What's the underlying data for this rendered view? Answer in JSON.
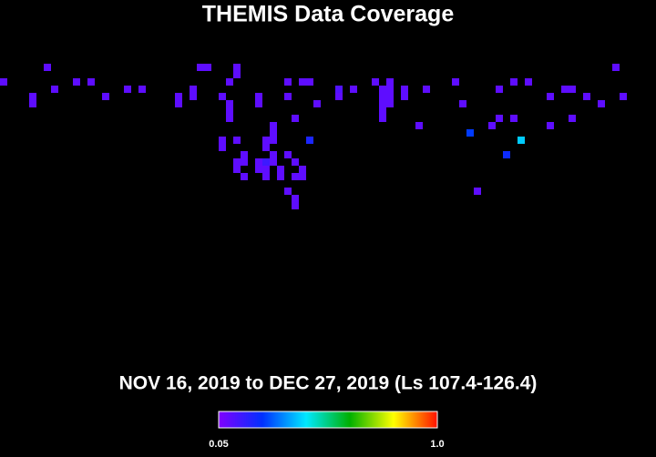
{
  "chart_data": {
    "type": "heatmap",
    "title": "THEMIS Data Coverage",
    "subtitle": "NOV 16, 2019 to DEC 27, 2019 (Ls 107.4-126.4)",
    "xlim": [
      0,
      90
    ],
    "ylim": [
      0,
      45
    ],
    "x": [
      6,
      27,
      28,
      32,
      84,
      32,
      0,
      10,
      12,
      31,
      39,
      41,
      42,
      51,
      53,
      62,
      70,
      72,
      7,
      17,
      19,
      26,
      46,
      48,
      52,
      53,
      55,
      58,
      68,
      77,
      78,
      4,
      14,
      24,
      26,
      30,
      35,
      39,
      46,
      52,
      53,
      55,
      75,
      80,
      85,
      4,
      24,
      31,
      35,
      43,
      52,
      53,
      63,
      82,
      31,
      52,
      31,
      40,
      52,
      68,
      70,
      78,
      37,
      57,
      67,
      75,
      37,
      64,
      30,
      32,
      36,
      37,
      42,
      71,
      30,
      36,
      33,
      37,
      39,
      69,
      32,
      33,
      35,
      36,
      37,
      40,
      32,
      35,
      36,
      38,
      41,
      33,
      36,
      38,
      40,
      41,
      39,
      65,
      40,
      40
    ],
    "y": [
      8,
      8,
      8,
      8,
      8,
      9,
      10,
      10,
      10,
      10,
      10,
      10,
      10,
      10,
      10,
      10,
      10,
      10,
      11,
      11,
      11,
      11,
      11,
      11,
      11,
      11,
      11,
      11,
      11,
      11,
      11,
      12,
      12,
      12,
      12,
      12,
      12,
      12,
      12,
      12,
      12,
      12,
      12,
      12,
      12,
      13,
      13,
      13,
      13,
      13,
      13,
      13,
      13,
      13,
      14,
      14,
      15,
      15,
      15,
      15,
      15,
      15,
      16,
      16,
      16,
      16,
      17,
      17,
      18,
      18,
      18,
      18,
      18,
      18,
      19,
      19,
      20,
      20,
      20,
      20,
      21,
      21,
      21,
      21,
      21,
      21,
      22,
      22,
      22,
      22,
      22,
      23,
      23,
      23,
      23,
      23,
      25,
      25,
      26,
      27
    ],
    "values": [
      0.1,
      0.1,
      0.1,
      0.1,
      0.1,
      0.1,
      0.1,
      0.1,
      0.1,
      0.1,
      0.1,
      0.1,
      0.1,
      0.1,
      0.1,
      0.1,
      0.1,
      0.1,
      0.1,
      0.1,
      0.1,
      0.1,
      0.12,
      0.1,
      0.1,
      0.1,
      0.1,
      0.1,
      0.1,
      0.1,
      0.1,
      0.1,
      0.1,
      0.1,
      0.1,
      0.1,
      0.1,
      0.1,
      0.1,
      0.1,
      0.1,
      0.1,
      0.1,
      0.1,
      0.1,
      0.1,
      0.1,
      0.1,
      0.1,
      0.1,
      0.1,
      0.1,
      0.1,
      0.1,
      0.1,
      0.1,
      0.1,
      0.1,
      0.1,
      0.1,
      0.1,
      0.1,
      0.1,
      0.1,
      0.1,
      0.1,
      0.1,
      0.25,
      0.1,
      0.1,
      0.1,
      0.1,
      0.2,
      0.4,
      0.1,
      0.1,
      0.1,
      0.1,
      0.1,
      0.22,
      0.1,
      0.1,
      0.1,
      0.15,
      0.1,
      0.1,
      0.1,
      0.1,
      0.1,
      0.1,
      0.1,
      0.1,
      0.1,
      0.1,
      0.1,
      0.1,
      0.1,
      0.1,
      0.1,
      0.1
    ],
    "colormap": [
      "#8000ff",
      "#0030ff",
      "#00e8ff",
      "#00b000",
      "#ffff00",
      "#ff1000"
    ],
    "clim": [
      0.05,
      1
    ],
    "cticks": [
      0.05,
      {
        "value": 1,
        "label": "1.0"
      }
    ]
  }
}
